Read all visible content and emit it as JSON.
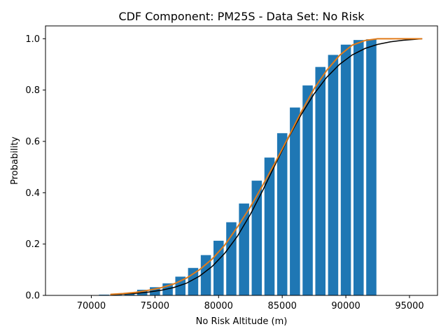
{
  "chart_data": {
    "type": "bar",
    "title": "CDF Component: PM25S - Data Set: No Risk",
    "xlabel": "No Risk Altitude (m)",
    "ylabel": "Probability",
    "xlim": [
      66400,
      97200
    ],
    "ylim": [
      0,
      1.05
    ],
    "grid": false,
    "bar_width": 800,
    "colors": {
      "bars": "#1f77b4",
      "fit_line": "#000000",
      "empirical_line": "#e07b1a"
    },
    "xticks": [
      {
        "value": 70000,
        "label": "70000"
      },
      {
        "value": 75000,
        "label": "75000"
      },
      {
        "value": 80000,
        "label": "80000"
      },
      {
        "value": 85000,
        "label": "85000"
      },
      {
        "value": 90000,
        "label": "90000"
      },
      {
        "value": 95000,
        "label": "95000"
      }
    ],
    "yticks": [
      {
        "value": 0.0,
        "label": "0.0"
      },
      {
        "value": 0.2,
        "label": "0.2"
      },
      {
        "value": 0.4,
        "label": "0.4"
      },
      {
        "value": 0.6,
        "label": "0.6"
      },
      {
        "value": 0.8,
        "label": "0.8"
      },
      {
        "value": 1.0,
        "label": "1.0"
      }
    ],
    "bars": {
      "x": [
        71000,
        72000,
        73000,
        74000,
        75000,
        76000,
        77000,
        78000,
        79000,
        80000,
        81000,
        82000,
        83000,
        84000,
        85000,
        86000,
        87000,
        88000,
        89000,
        90000,
        91000,
        92000
      ],
      "values": [
        0.003,
        0.005,
        0.01,
        0.022,
        0.032,
        0.047,
        0.073,
        0.107,
        0.157,
        0.213,
        0.285,
        0.358,
        0.447,
        0.537,
        0.632,
        0.732,
        0.818,
        0.89,
        0.937,
        0.977,
        0.995,
        0.998
      ]
    },
    "series": [
      {
        "x": [
          71500,
          72500,
          73500,
          74500,
          75500,
          76500,
          77500,
          78500,
          79500,
          80500,
          81500,
          82500,
          83500,
          84500,
          85500,
          86500,
          87500,
          88500,
          89500,
          90500,
          91500,
          92500,
          93500,
          94500,
          95500,
          96000
        ],
        "y": [
          0.003,
          0.005,
          0.008,
          0.013,
          0.02,
          0.031,
          0.048,
          0.075,
          0.113,
          0.165,
          0.232,
          0.316,
          0.412,
          0.515,
          0.615,
          0.705,
          0.785,
          0.85,
          0.9,
          0.937,
          0.962,
          0.978,
          0.988,
          0.994,
          0.998,
          1.0
        ]
      },
      {
        "x": [
          71500,
          72500,
          73500,
          74500,
          75500,
          76500,
          77500,
          78500,
          79500,
          80500,
          81500,
          82500,
          83500,
          84500,
          85500,
          86500,
          87500,
          88500,
          89500,
          90500,
          91500,
          92500,
          93500,
          94500,
          95500,
          96000
        ],
        "y": [
          0.004,
          0.007,
          0.012,
          0.02,
          0.03,
          0.045,
          0.068,
          0.1,
          0.142,
          0.197,
          0.268,
          0.345,
          0.432,
          0.522,
          0.618,
          0.715,
          0.805,
          0.877,
          0.935,
          0.975,
          0.993,
          1.0,
          1.0,
          1.0,
          1.0,
          1.0
        ]
      }
    ]
  }
}
